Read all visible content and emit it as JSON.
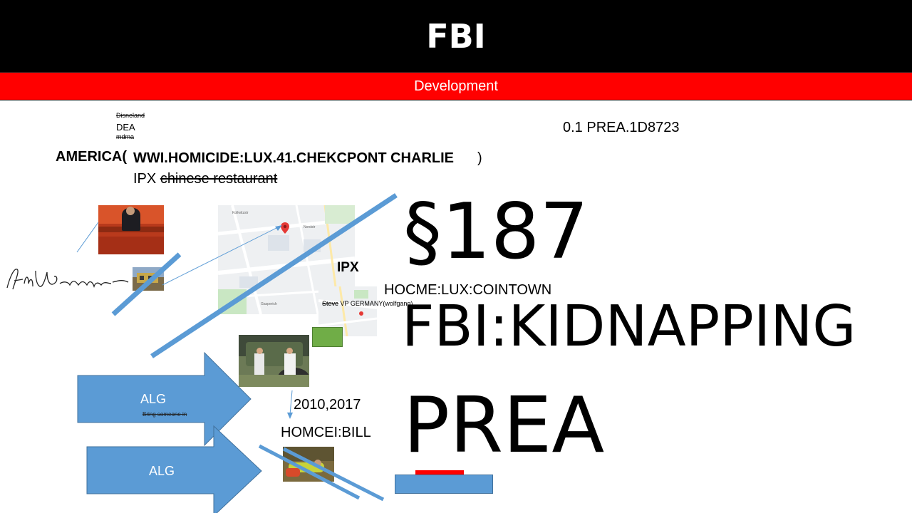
{
  "header": {
    "title": "FBI"
  },
  "subheader": {
    "title": "Development"
  },
  "notes": {
    "disneland": "Disneland",
    "dea": "DEA",
    "mdma": "mdma",
    "version": "0.1 PREA.1D8723",
    "america_open": "AMERICA(",
    "homicide_line": "WWI.HOMICIDE:LUX.41.CHEKCPONT CHARLIE",
    "america_close": ")",
    "ipx_prefix": "IPX",
    "ipx_struck": "chinese restaurant",
    "ipx_map_label": "IPX",
    "steve_struck": "Steve",
    "steve_rest": " VP GERMANY(wolfgang)",
    "hocme": "HOCME:LUX:COINTOWN",
    "years": "2010,2017",
    "homcei": "HOMCEI:BILL"
  },
  "headline": {
    "section": "§187",
    "kidnapping": "FBI:KIDNAPPING",
    "prea": "PREA"
  },
  "arrows": [
    {
      "label": "ALG",
      "sublabel": "Bring someone in"
    },
    {
      "label": "ALG"
    }
  ],
  "colors": {
    "header_bg": "#000000",
    "subheader_bg": "#ff0000",
    "arrow_fill": "#5b9bd5",
    "line_blue": "#5b9bd5",
    "green_box": "#70ad47"
  },
  "icons": [
    "signature-icon",
    "map-pin-icon"
  ]
}
